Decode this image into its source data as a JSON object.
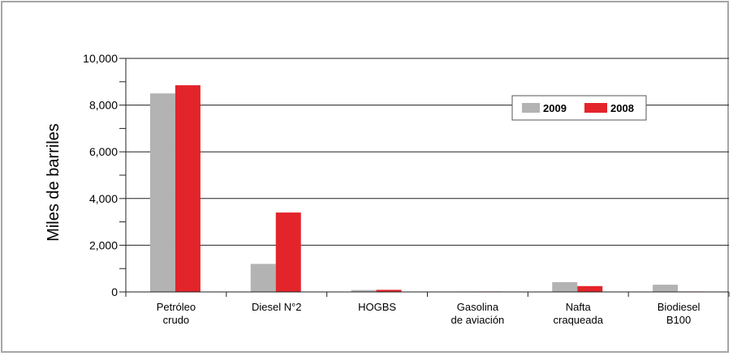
{
  "chart_data": {
    "type": "bar",
    "title": "",
    "xlabel": "",
    "ylabel": "Miles de barriles",
    "ylim": [
      0,
      10000
    ],
    "yticks": [
      "0",
      "2,000",
      "4,000",
      "6,000",
      "8,000",
      "10,000"
    ],
    "grid": true,
    "legend_position": "top-right",
    "categories": [
      [
        "Petróleo",
        "crudo"
      ],
      [
        "Diesel N°2"
      ],
      [
        "HOGBS"
      ],
      [
        "Gasolina",
        "de aviación"
      ],
      [
        "Nafta",
        "craqueada"
      ],
      [
        "Biodiesel",
        "B100"
      ]
    ],
    "series": [
      {
        "name": "2009",
        "color": "#b3b3b3",
        "values": [
          8500,
          1200,
          80,
          20,
          420,
          310
        ]
      },
      {
        "name": "2008",
        "color": "#e3242b",
        "values": [
          8850,
          3400,
          90,
          20,
          250,
          20
        ]
      }
    ]
  }
}
